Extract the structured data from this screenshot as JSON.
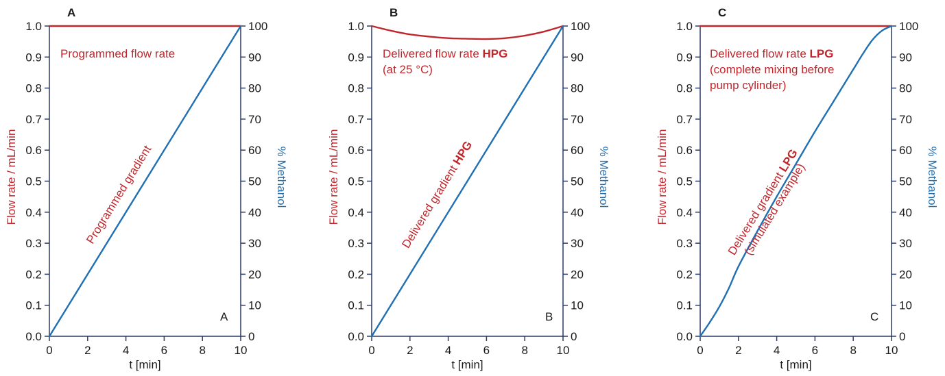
{
  "colors": {
    "flow": "#c0272d",
    "methanol": "#1f6fb2",
    "axis": "#2b3a67",
    "text": "#1a1a1a"
  },
  "chart_data": [
    {
      "type": "line",
      "panel_label": "A",
      "corner_label": "A",
      "xlabel": "t [min]",
      "ylabel_left": "Flow rate / mL/min",
      "ylabel_right": "% Methanol",
      "xlim": [
        0,
        10
      ],
      "ylim_left": [
        0,
        1.0
      ],
      "ylim_right": [
        0,
        100
      ],
      "x_ticks": [
        "0",
        "2",
        "4",
        "6",
        "8",
        "10"
      ],
      "y_left_ticks": [
        "0.0",
        "0.1",
        "0.2",
        "0.3",
        "0.4",
        "0.5",
        "0.6",
        "0.7",
        "0.8",
        "0.9",
        "1.0"
      ],
      "y_right_ticks": [
        "0",
        "10",
        "20",
        "30",
        "40",
        "50",
        "60",
        "70",
        "80",
        "90",
        "100"
      ],
      "flow_label": {
        "lines": [
          [
            {
              "text": "Programmed flow rate",
              "bold": false
            }
          ]
        ]
      },
      "gradient_label": {
        "lines": [
          [
            {
              "text": "Programmed gradient",
              "bold": false
            }
          ]
        ]
      },
      "series": [
        {
          "axis": "left",
          "x": [
            0,
            10
          ],
          "y": [
            1.0,
            1.0
          ]
        },
        {
          "axis": "right",
          "x": [
            0,
            10
          ],
          "y": [
            0,
            100
          ]
        }
      ]
    },
    {
      "type": "line",
      "panel_label": "B",
      "corner_label": "B",
      "xlabel": "t [min]",
      "ylabel_left": "Flow rate / mL/min",
      "ylabel_right": "% Methanol",
      "xlim": [
        0,
        10
      ],
      "ylim_left": [
        0,
        1.0
      ],
      "ylim_right": [
        0,
        100
      ],
      "x_ticks": [
        "0",
        "2",
        "4",
        "6",
        "8",
        "10"
      ],
      "y_left_ticks": [
        "0.0",
        "0.1",
        "0.2",
        "0.3",
        "0.4",
        "0.5",
        "0.6",
        "0.7",
        "0.8",
        "0.9",
        "1.0"
      ],
      "y_right_ticks": [
        "0",
        "10",
        "20",
        "30",
        "40",
        "50",
        "60",
        "70",
        "80",
        "90",
        "100"
      ],
      "flow_label": {
        "lines": [
          [
            {
              "text": "Delivered flow rate ",
              "bold": false
            },
            {
              "text": "HPG",
              "bold": true
            }
          ],
          [
            {
              "text": "(at 25 °C)",
              "bold": false
            }
          ]
        ]
      },
      "gradient_label": {
        "lines": [
          [
            {
              "text": "Delivered gradient ",
              "bold": false
            },
            {
              "text": "HPG",
              "bold": true
            }
          ]
        ]
      },
      "series": [
        {
          "axis": "left",
          "x": [
            0,
            1,
            2,
            3,
            4,
            5,
            6,
            7,
            8,
            9,
            10
          ],
          "y": [
            1.0,
            0.985,
            0.973,
            0.966,
            0.961,
            0.959,
            0.958,
            0.961,
            0.969,
            0.982,
            1.0
          ]
        },
        {
          "axis": "right",
          "x": [
            0,
            10
          ],
          "y": [
            0,
            100
          ]
        }
      ]
    },
    {
      "type": "line",
      "panel_label": "C",
      "corner_label": "C",
      "xlabel": "t [min]",
      "ylabel_left": "Flow rate / mL/min",
      "ylabel_right": "% Methanol",
      "xlim": [
        0,
        10
      ],
      "ylim_left": [
        0,
        1.0
      ],
      "ylim_right": [
        0,
        100
      ],
      "x_ticks": [
        "0",
        "2",
        "4",
        "6",
        "8",
        "10"
      ],
      "y_left_ticks": [
        "0.0",
        "0.1",
        "0.2",
        "0.3",
        "0.4",
        "0.5",
        "0.6",
        "0.7",
        "0.8",
        "0.9",
        "1.0"
      ],
      "y_right_ticks": [
        "0",
        "10",
        "20",
        "30",
        "40",
        "50",
        "60",
        "70",
        "80",
        "90",
        "100"
      ],
      "flow_label": {
        "lines": [
          [
            {
              "text": "Delivered flow rate ",
              "bold": false
            },
            {
              "text": "LPG",
              "bold": true
            }
          ],
          [
            {
              "text": "(complete mixing before",
              "bold": false
            }
          ],
          [
            {
              "text": "pump cylinder)",
              "bold": false
            }
          ]
        ]
      },
      "gradient_label": {
        "lines": [
          [
            {
              "text": "Delivered gradient ",
              "bold": false
            },
            {
              "text": "LPG",
              "bold": true
            }
          ],
          [
            {
              "text": "(simulated example)",
              "bold": false
            }
          ]
        ]
      },
      "series": [
        {
          "axis": "left",
          "x": [
            0,
            10
          ],
          "y": [
            1.0,
            1.0
          ]
        },
        {
          "axis": "right",
          "x": [
            0,
            0.5,
            1,
            1.5,
            2,
            3,
            4,
            5,
            6,
            7,
            8,
            8.5,
            9,
            9.5,
            10
          ],
          "y": [
            0,
            4.5,
            9.5,
            15.5,
            22.5,
            34,
            45,
            55.5,
            66,
            76,
            86,
            91,
            95.5,
            98.5,
            100
          ]
        }
      ]
    }
  ]
}
